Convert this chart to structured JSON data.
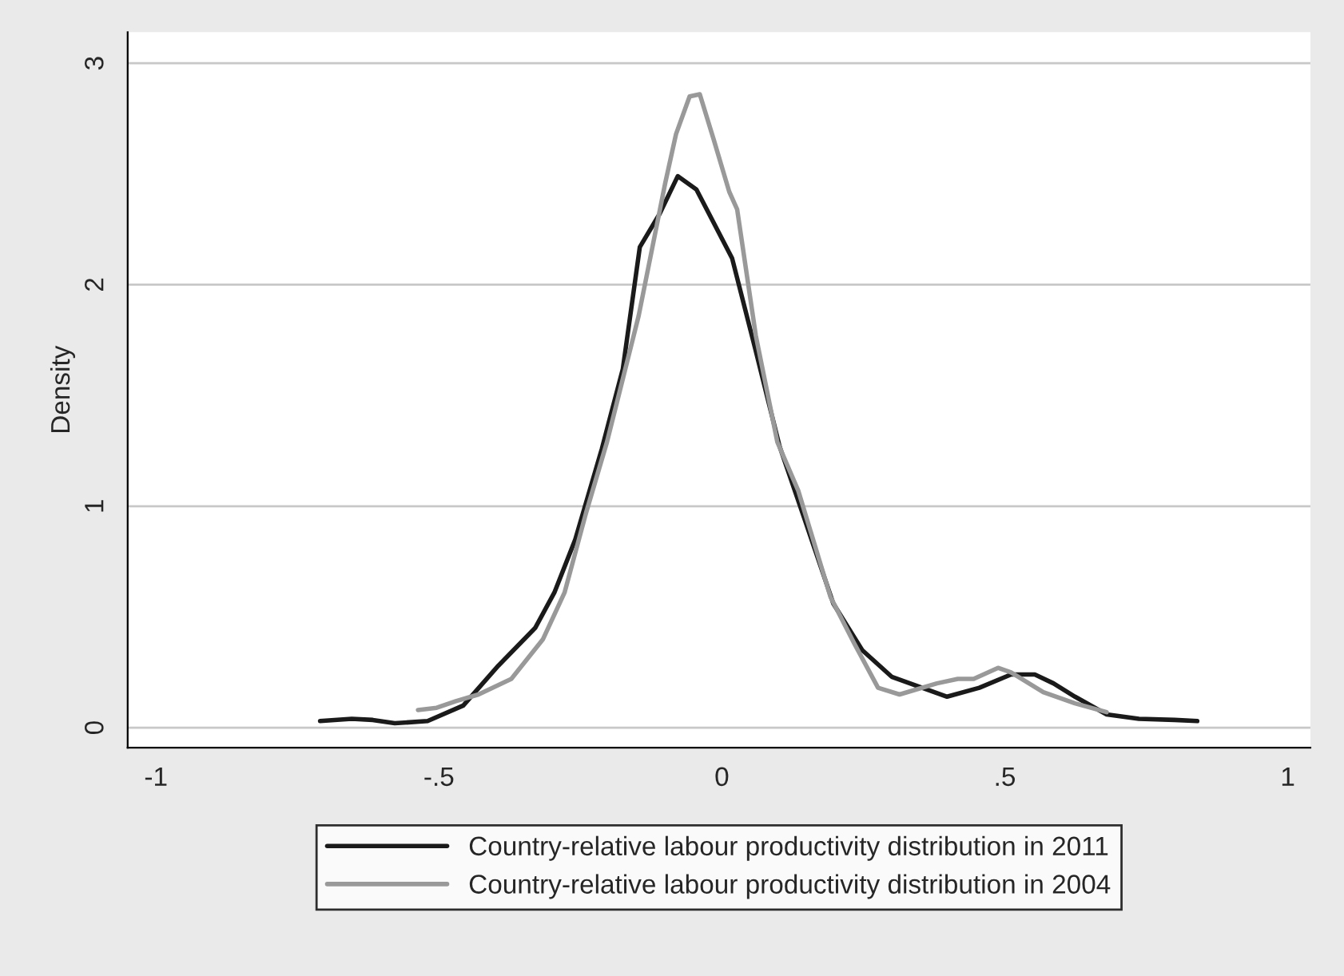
{
  "chart_data": {
    "type": "line",
    "ylabel": "Density",
    "xlim": [
      -1.05,
      1.04
    ],
    "ylim": [
      -0.09,
      3.14
    ],
    "xticks": [
      {
        "value": -1,
        "label": "-1"
      },
      {
        "value": -0.5,
        "label": "-.5"
      },
      0,
      {
        "value": 0.5,
        "label": ".5"
      },
      1
    ],
    "yticks": [
      0,
      1,
      2,
      3
    ],
    "grid": "y",
    "legend": "bottom",
    "line_style": "solid",
    "marker": "none",
    "series": [
      {
        "name": "Country-relative labour productivity distribution in 2011",
        "color": "#1a1a1a",
        "x": [
          -0.71,
          -0.654,
          -0.617,
          -0.578,
          -0.52,
          -0.457,
          -0.395,
          -0.33,
          -0.296,
          -0.259,
          -0.212,
          -0.175,
          -0.145,
          -0.11,
          -0.078,
          -0.045,
          0.018,
          0.059,
          0.102,
          0.145,
          0.197,
          0.248,
          0.3,
          0.398,
          0.455,
          0.511,
          0.553,
          0.586,
          0.624,
          0.68,
          0.737,
          0.8,
          0.84
        ],
        "values": [
          0.03,
          0.04,
          0.035,
          0.02,
          0.03,
          0.1,
          0.28,
          0.45,
          0.61,
          0.85,
          1.26,
          1.62,
          2.17,
          2.32,
          2.49,
          2.43,
          2.12,
          1.71,
          1.27,
          0.95,
          0.56,
          0.35,
          0.23,
          0.14,
          0.18,
          0.24,
          0.24,
          0.2,
          0.14,
          0.06,
          0.04,
          0.035,
          0.03
        ]
      },
      {
        "name": "Country-relative labour productivity distribution in 2004",
        "color": "#999999",
        "x": [
          -0.537,
          -0.504,
          -0.47,
          -0.43,
          -0.372,
          -0.316,
          -0.278,
          -0.24,
          -0.203,
          -0.147,
          -0.1,
          -0.081,
          -0.057,
          -0.039,
          -0.015,
          0.013,
          0.027,
          0.06,
          0.098,
          0.135,
          0.192,
          0.234,
          0.276,
          0.314,
          0.38,
          0.417,
          0.445,
          0.488,
          0.511,
          0.568,
          0.624,
          0.68
        ],
        "values": [
          0.08,
          0.09,
          0.12,
          0.15,
          0.22,
          0.4,
          0.61,
          0.97,
          1.29,
          1.86,
          2.46,
          2.68,
          2.85,
          2.86,
          2.66,
          2.42,
          2.34,
          1.77,
          1.29,
          1.07,
          0.59,
          0.38,
          0.18,
          0.15,
          0.2,
          0.22,
          0.22,
          0.27,
          0.25,
          0.16,
          0.11,
          0.07
        ]
      }
    ]
  }
}
